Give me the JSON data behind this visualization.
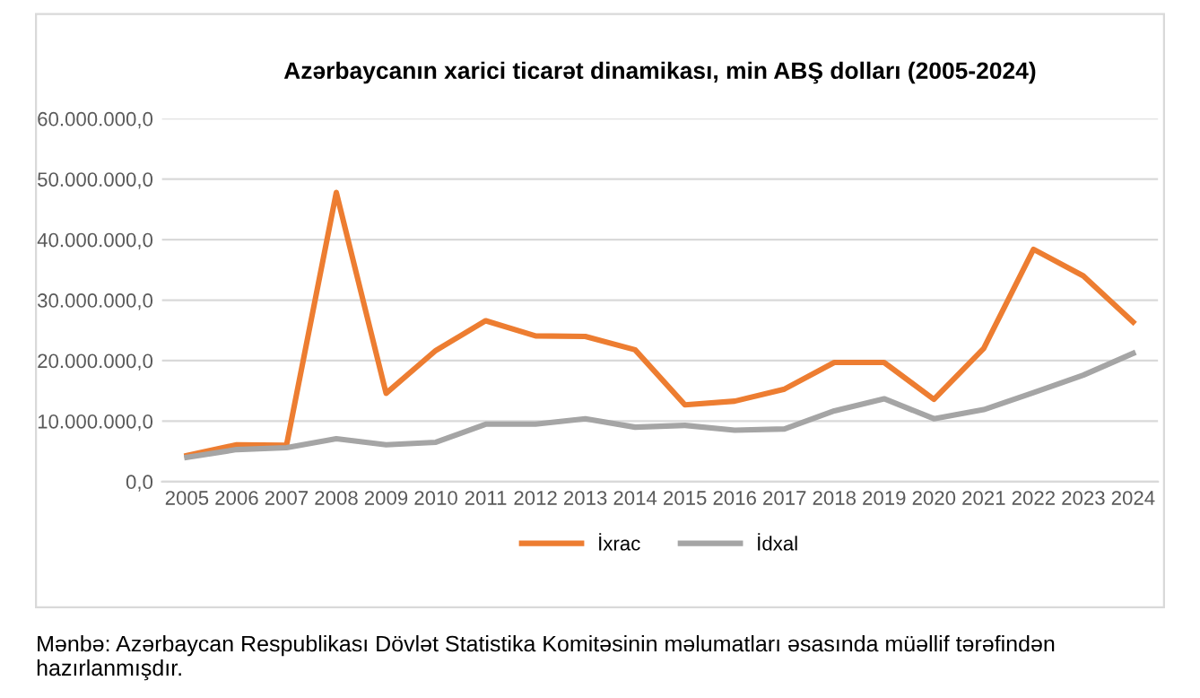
{
  "chart_data": {
    "type": "line",
    "title": "Azərbaycanın xarici ticarət dinamikası, min ABŞ dolları (2005-2024)",
    "categories": [
      "2005",
      "2006",
      "2007",
      "2008",
      "2009",
      "2010",
      "2011",
      "2012",
      "2013",
      "2014",
      "2015",
      "2016",
      "2017",
      "2018",
      "2019",
      "2020",
      "2021",
      "2022",
      "2023",
      "2024"
    ],
    "series": [
      {
        "name": "İxrac",
        "color": "#ed7d31",
        "values": [
          4300000,
          6100000,
          6000000,
          47800000,
          14600000,
          21700000,
          26600000,
          24100000,
          24000000,
          21800000,
          12700000,
          13300000,
          15300000,
          19700000,
          19700000,
          13600000,
          22000000,
          38400000,
          34000000,
          26400000
        ]
      },
      {
        "name": "İdxal",
        "color": "#a5a5a5",
        "values": [
          4000000,
          5300000,
          5600000,
          7100000,
          6100000,
          6500000,
          9500000,
          9500000,
          10400000,
          9000000,
          9300000,
          8500000,
          8700000,
          11700000,
          13700000,
          10400000,
          11900000,
          14700000,
          17600000,
          21200000
        ]
      }
    ],
    "ylim": [
      0,
      60000000
    ],
    "yticks": [
      {
        "value": 0,
        "label": "0,0"
      },
      {
        "value": 10000000,
        "label": "10.000.000,0"
      },
      {
        "value": 20000000,
        "label": "20.000.000,0"
      },
      {
        "value": 30000000,
        "label": "30.000.000,0"
      },
      {
        "value": 40000000,
        "label": "40.000.000,0"
      },
      {
        "value": 50000000,
        "label": "50.000.000,0"
      },
      {
        "value": 60000000,
        "label": "60.000.000,0"
      }
    ],
    "grid": "y",
    "legend": "bottom",
    "marker": "none",
    "line_style": "solid",
    "annotations": [
      "Mənbə: Azərbaycan Respublikası Dövlət Statistika Komitəsinin məlumatları əsasında müəllif tərəfindən hazırlanmışdır."
    ]
  }
}
